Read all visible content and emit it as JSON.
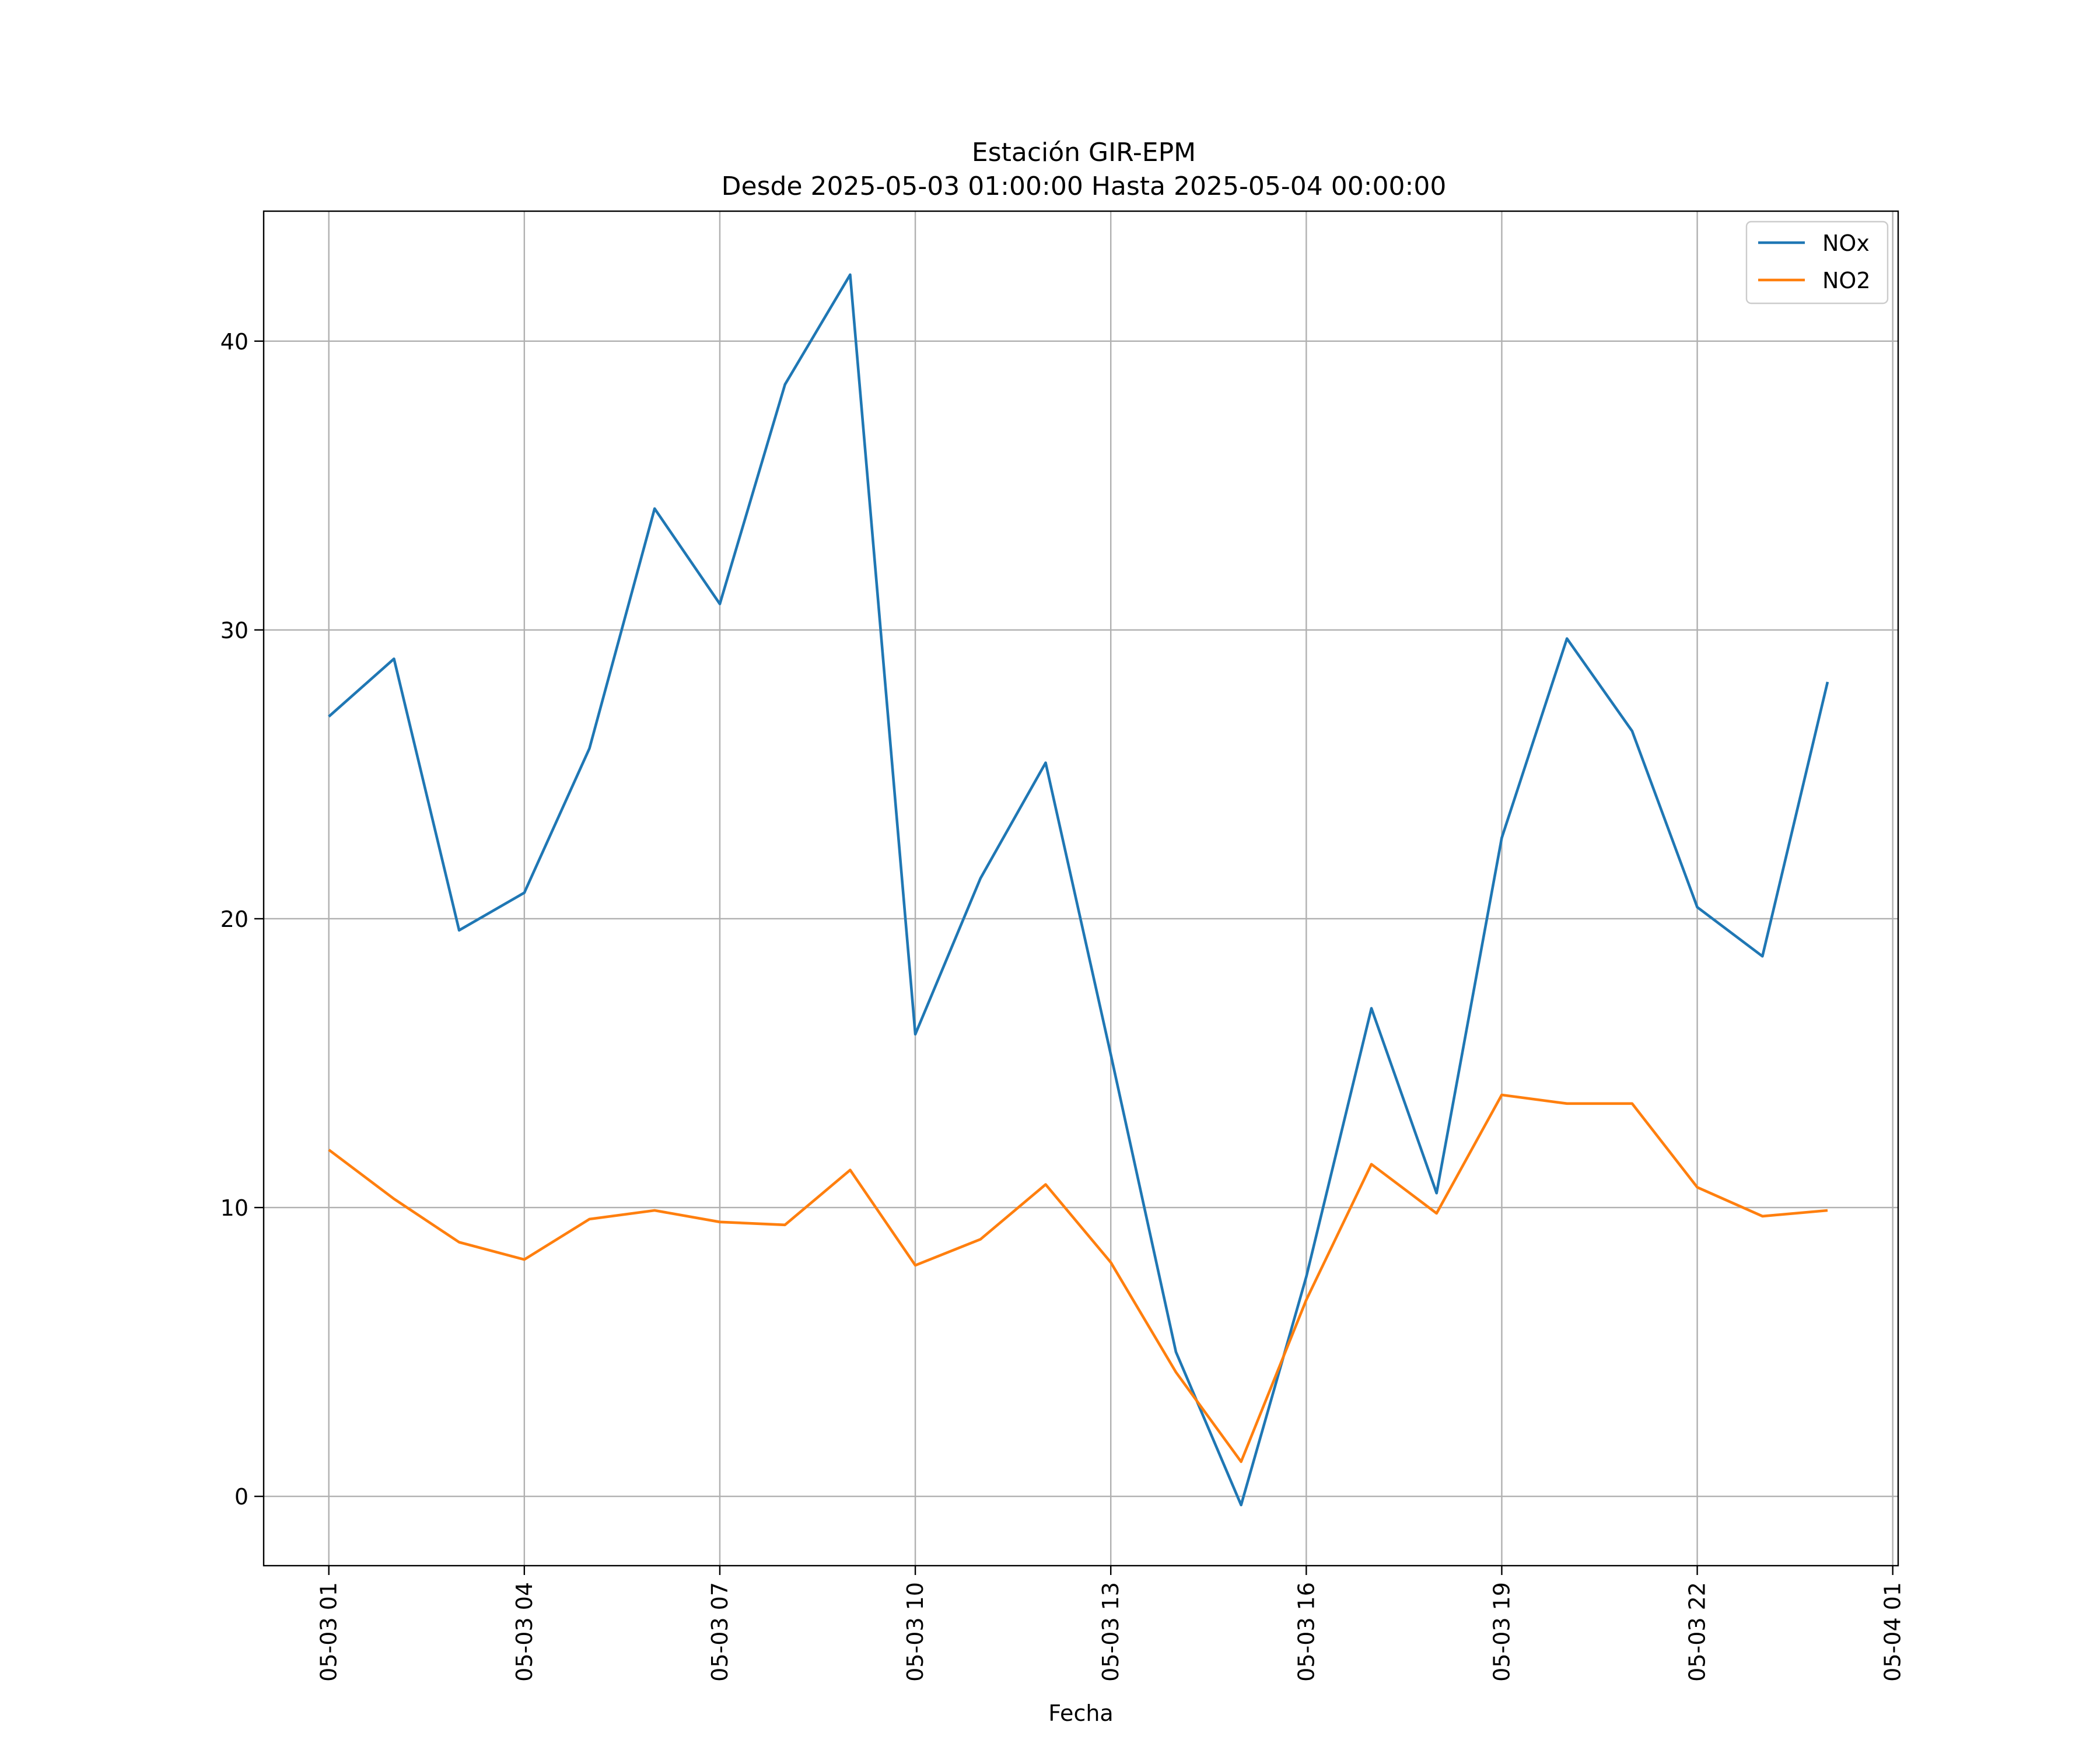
{
  "chart_data": {
    "type": "line",
    "title_line1": "Estación GIR-EPM",
    "title_line2": "Desde 2025-05-03 01:00:00 Hasta 2025-05-04 00:00:00",
    "xlabel": "Fecha",
    "ylabel": "",
    "x": [
      "05-03 01",
      "05-03 02",
      "05-03 03",
      "05-03 04",
      "05-03 05",
      "05-03 06",
      "05-03 07",
      "05-03 08",
      "05-03 09",
      "05-03 10",
      "05-03 11",
      "05-03 12",
      "05-03 13",
      "05-03 14",
      "05-03 15",
      "05-03 16",
      "05-03 17",
      "05-03 18",
      "05-03 19",
      "05-03 20",
      "05-03 21",
      "05-03 22",
      "05-03 23",
      "05-04 00"
    ],
    "x_ticks": [
      "05-03 01",
      "05-03 04",
      "05-03 07",
      "05-03 10",
      "05-03 13",
      "05-03 16",
      "05-03 19",
      "05-03 22",
      "05-04 01"
    ],
    "y_ticks": [
      0,
      10,
      20,
      30,
      40
    ],
    "ylim": [
      -2.4,
      44.5
    ],
    "xlim": [
      "05-03 00:00",
      "05-04 01:05"
    ],
    "grid": true,
    "legend_position": "top-right",
    "series": [
      {
        "name": "NOx",
        "color": "#1f77b4",
        "values": [
          27.0,
          29.0,
          19.6,
          20.9,
          25.9,
          34.2,
          30.9,
          38.5,
          42.3,
          16.0,
          21.4,
          25.4,
          15.3,
          5.0,
          -0.3,
          7.6,
          16.9,
          10.5,
          22.8,
          29.7,
          26.5,
          20.4,
          18.7,
          28.2
        ]
      },
      {
        "name": "NO2",
        "color": "#ff7f0e",
        "values": [
          12.0,
          10.3,
          8.8,
          8.2,
          9.6,
          9.9,
          9.5,
          9.4,
          11.3,
          8.0,
          8.9,
          10.8,
          8.1,
          4.3,
          1.2,
          6.8,
          11.5,
          9.8,
          13.9,
          13.6,
          13.6,
          10.7,
          9.7,
          9.9
        ]
      }
    ]
  }
}
